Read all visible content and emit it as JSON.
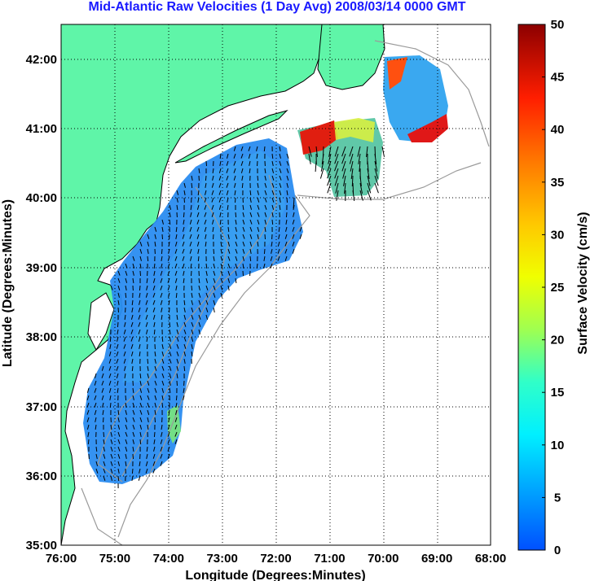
{
  "title": "Mid-Atlantic Raw Velocities (1 Day Avg) 2008/03/14 0000 GMT",
  "map": {
    "xlabel": "Longitude (Degrees:Minutes)",
    "ylabel": "Latitude (Degrees:Minutes)",
    "lon_ticks": [
      "76:00",
      "75:00",
      "74:00",
      "73:00",
      "72:00",
      "71:00",
      "70:00",
      "69:00",
      "68:00"
    ],
    "lat_ticks": [
      "42:00",
      "41:00",
      "40:00",
      "39:00",
      "38:00",
      "37:00",
      "36:00",
      "35:00"
    ],
    "lon_range": [
      -76,
      -68
    ],
    "lat_range": [
      35,
      42.5
    ],
    "grid": "dotted",
    "land_color": "#5ff5a8",
    "ocean_color": "#ffffff"
  },
  "colorbar": {
    "label": "Surface Velocity (cm/s)",
    "ticks": [
      "50",
      "45",
      "40",
      "35",
      "30",
      "25",
      "20",
      "15",
      "10",
      "5",
      "0"
    ],
    "range": [
      0,
      50
    ],
    "colormap": "jet"
  }
}
